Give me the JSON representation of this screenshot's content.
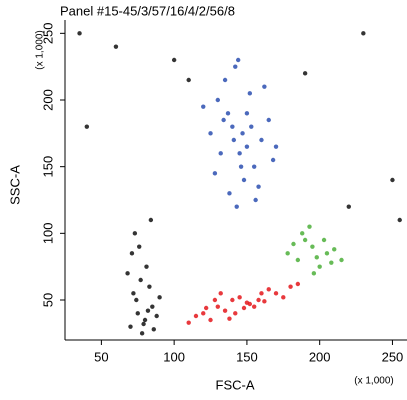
{
  "chart_data": {
    "type": "scatter",
    "title": "Panel #15-45/3/57/16/4/2/56/8",
    "x_label": "FSC-A",
    "y_label": "SSC-A",
    "x_unit_label": "(x 1,000)",
    "y_unit_label": "(x 1,000)",
    "xlim": [
      25,
      260
    ],
    "ylim": [
      20,
      260
    ],
    "xticks": [
      50,
      100,
      150,
      200,
      250
    ],
    "yticks": [
      50,
      100,
      150,
      200,
      250
    ],
    "grid": false,
    "series": [
      {
        "color": "#2b4fb0",
        "x": [
          130,
          140,
          150,
          160,
          145,
          135,
          155,
          125,
          165,
          148,
          138,
          152,
          142,
          158,
          132,
          170,
          120,
          147,
          143,
          162,
          128,
          153,
          137,
          146,
          168,
          141,
          156,
          134,
          150,
          144
        ],
        "values": [
          200,
          180,
          190,
          170,
          160,
          215,
          150,
          175,
          185,
          140,
          130,
          205,
          225,
          135,
          160,
          165,
          195,
          175,
          120,
          210,
          145,
          180,
          190,
          150,
          155,
          170,
          125,
          185,
          165,
          230
        ]
      },
      {
        "color": "#e4161b",
        "x": [
          120,
          130,
          140,
          150,
          160,
          125,
          135,
          145,
          155,
          165,
          115,
          128,
          138,
          148,
          158,
          170,
          180,
          110,
          142,
          152,
          132,
          162,
          122,
          175,
          185
        ],
        "values": [
          40,
          45,
          50,
          48,
          55,
          35,
          42,
          52,
          45,
          58,
          38,
          50,
          36,
          44,
          50,
          55,
          60,
          33,
          40,
          47,
          55,
          49,
          44,
          52,
          62
        ]
      },
      {
        "color": "#4caf3a",
        "x": [
          185,
          195,
          205,
          190,
          200,
          210,
          188,
          198,
          182,
          208,
          193,
          203,
          215,
          178,
          196
        ],
        "values": [
          80,
          90,
          85,
          95,
          75,
          88,
          100,
          82,
          92,
          78,
          105,
          95,
          80,
          85,
          70
        ]
      },
      {
        "color": "#111111",
        "x": [
          70,
          75,
          80,
          85,
          72,
          78,
          83,
          88,
          68,
          74,
          79,
          86,
          71,
          77,
          82,
          90,
          73,
          81,
          76,
          84,
          60,
          100,
          230,
          250,
          40,
          190,
          220,
          110,
          255,
          35
        ],
        "values": [
          30,
          40,
          35,
          45,
          55,
          25,
          60,
          38,
          70,
          50,
          32,
          28,
          85,
          65,
          42,
          52,
          100,
          75,
          90,
          110,
          240,
          230,
          250,
          140,
          180,
          220,
          120,
          215,
          110,
          250
        ]
      }
    ]
  }
}
